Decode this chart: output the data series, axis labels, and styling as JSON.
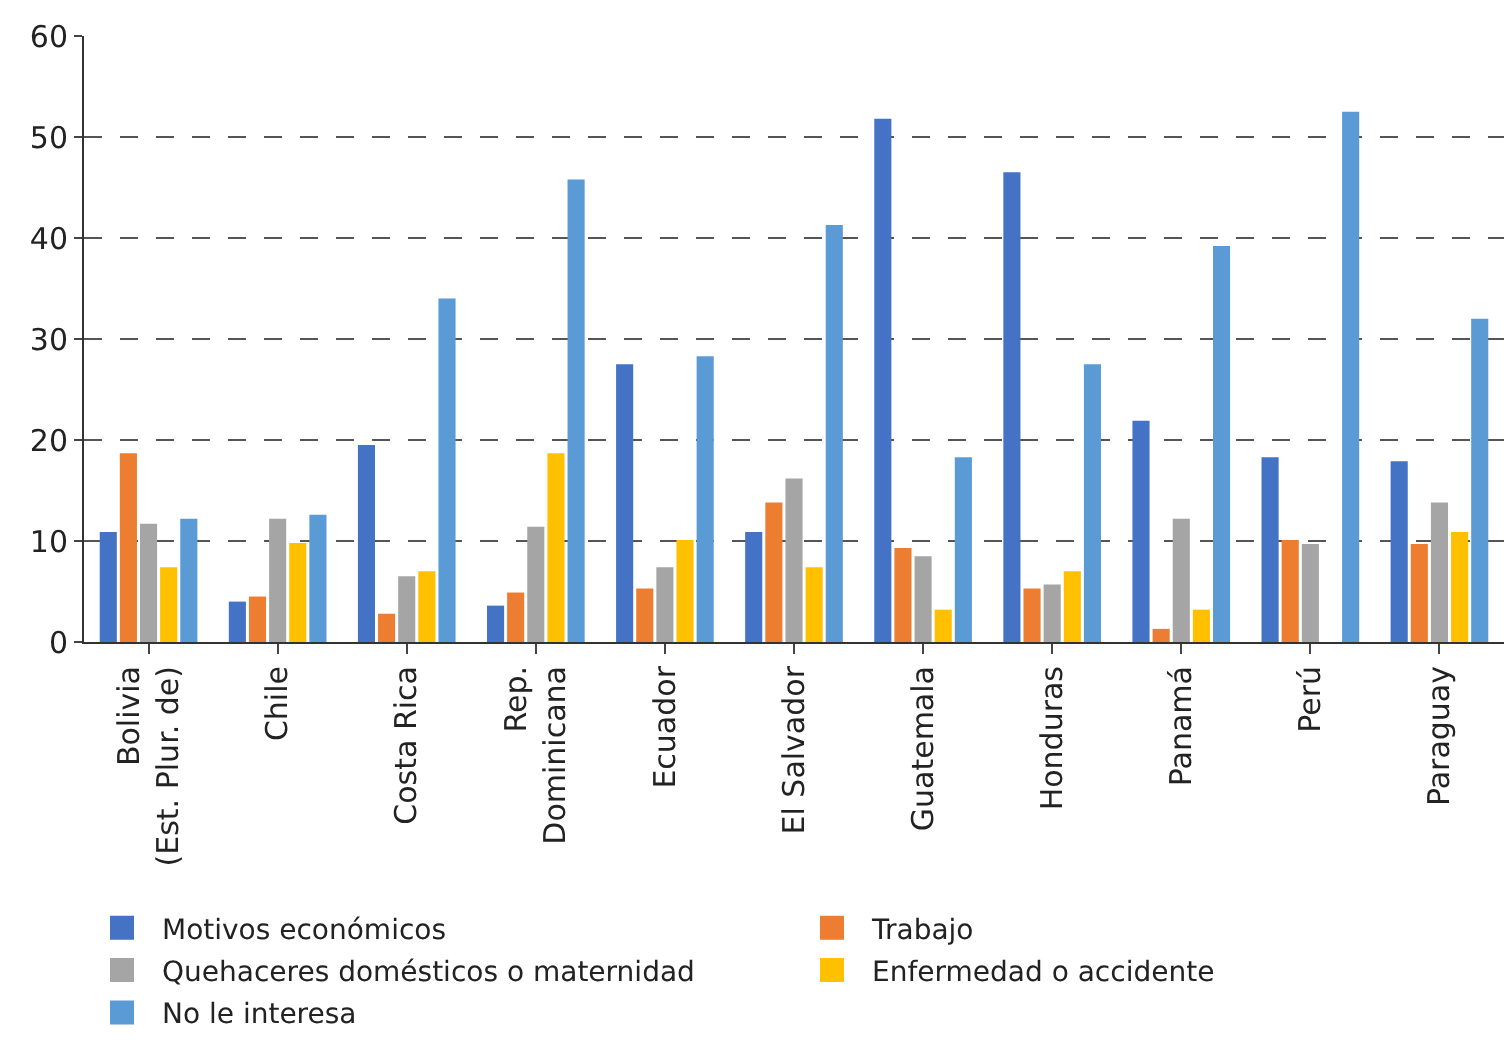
{
  "chart_data": {
    "type": "bar",
    "categories": [
      "Bolivia\n(Est. Plur. de)",
      "Chile",
      "Costa Rica",
      "Rep.\nDominicana",
      "Ecuador",
      "El Salvador",
      "Guatemala",
      "Honduras",
      "Panamá",
      "Perú",
      "Paraguay"
    ],
    "series": [
      {
        "name": "Motivos económicos",
        "color": "#4472c4",
        "values": [
          10.9,
          4.0,
          19.5,
          3.6,
          27.5,
          10.9,
          51.8,
          46.5,
          21.9,
          18.3,
          17.9
        ]
      },
      {
        "name": "Trabajo",
        "color": "#ed7d31",
        "values": [
          18.7,
          4.5,
          2.8,
          4.9,
          5.3,
          13.8,
          9.3,
          5.3,
          1.3,
          10.1,
          9.7
        ]
      },
      {
        "name": "Quehaceres domésticos o maternidad",
        "color": "#a5a5a5",
        "values": [
          11.7,
          12.2,
          6.5,
          11.4,
          7.4,
          16.2,
          8.5,
          5.7,
          12.2,
          9.7,
          13.8
        ]
      },
      {
        "name": "Enfermedad o accidente",
        "color": "#ffc000",
        "values": [
          7.4,
          9.8,
          7.0,
          18.7,
          10.1,
          7.4,
          3.2,
          7.0,
          3.2,
          null,
          10.9
        ]
      },
      {
        "name": "No le interesa",
        "color": "#5b9bd5",
        "values": [
          12.2,
          12.6,
          34.0,
          45.8,
          28.3,
          41.3,
          18.3,
          27.5,
          39.2,
          52.5,
          32.0
        ]
      }
    ],
    "ylim": [
      0,
      60
    ],
    "yticks": [
      0,
      10,
      20,
      30,
      40,
      50,
      60
    ],
    "grid": "y",
    "legend": "bottom"
  }
}
